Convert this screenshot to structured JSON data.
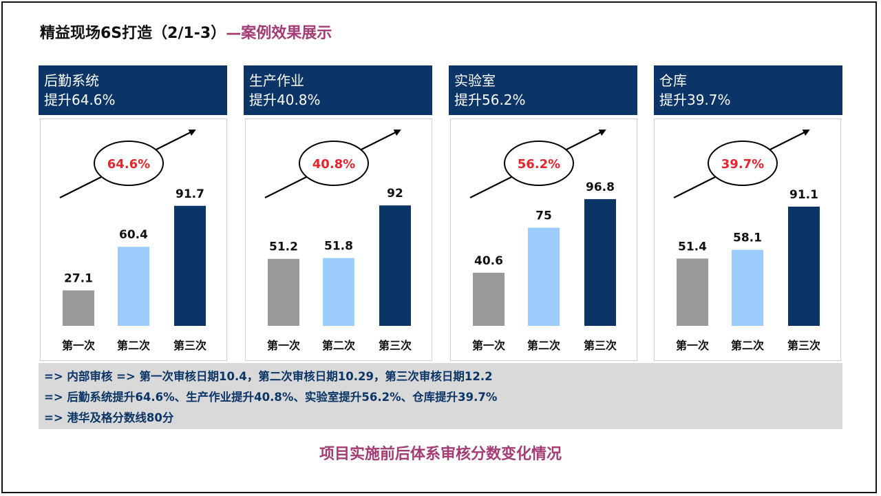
{
  "title": {
    "main": "精益现场6S打造（2/1-3）",
    "sub": "—案例效果展示"
  },
  "colors": {
    "navy": "#0b3566",
    "gray": "#999999",
    "light": "#9cccfb",
    "red": "#e8232b",
    "accent": "#a33b74"
  },
  "chart_data": [
    {
      "type": "bar",
      "title": "后勤系统",
      "subtitle": "提升64.6%",
      "badge": "64.6%",
      "categories": [
        "第一次",
        "第二次",
        "第三次"
      ],
      "values": [
        27.1,
        60.4,
        91.7
      ],
      "value_labels": [
        "27.1",
        "60.4",
        "91.7"
      ],
      "ylim": [
        0,
        100
      ]
    },
    {
      "type": "bar",
      "title": "生产作业",
      "subtitle": "提升40.8%",
      "badge": "40.8%",
      "categories": [
        "第一次",
        "第二次",
        "第三次"
      ],
      "values": [
        51.2,
        51.8,
        92
      ],
      "value_labels": [
        "51.2",
        "51.8",
        "92"
      ],
      "ylim": [
        0,
        100
      ]
    },
    {
      "type": "bar",
      "title": "实验室",
      "subtitle": "提升56.2%",
      "badge": "56.2%",
      "categories": [
        "第一次",
        "第二次",
        "第三次"
      ],
      "values": [
        40.6,
        75,
        96.8
      ],
      "value_labels": [
        "40.6",
        "75",
        "96.8"
      ],
      "ylim": [
        0,
        100
      ]
    },
    {
      "type": "bar",
      "title": "仓库",
      "subtitle": "提升39.7%",
      "badge": "39.7%",
      "categories": [
        "第一次",
        "第二次",
        "第三次"
      ],
      "values": [
        51.4,
        58.1,
        91.1
      ],
      "value_labels": [
        "51.4",
        "58.1",
        "91.1"
      ],
      "ylim": [
        0,
        100
      ]
    }
  ],
  "notes": [
    "=> 内部审核 => 第一次审核日期10.4，第二次审核日期10.29，第三次审核日期12.2",
    "=> 后勤系统提升64.6%、生产作业提升40.8%、实验室提升56.2%、仓库提升39.7%",
    "=> 港华及格分数线80分"
  ],
  "caption": "项目实施前后体系审核分数变化情况"
}
